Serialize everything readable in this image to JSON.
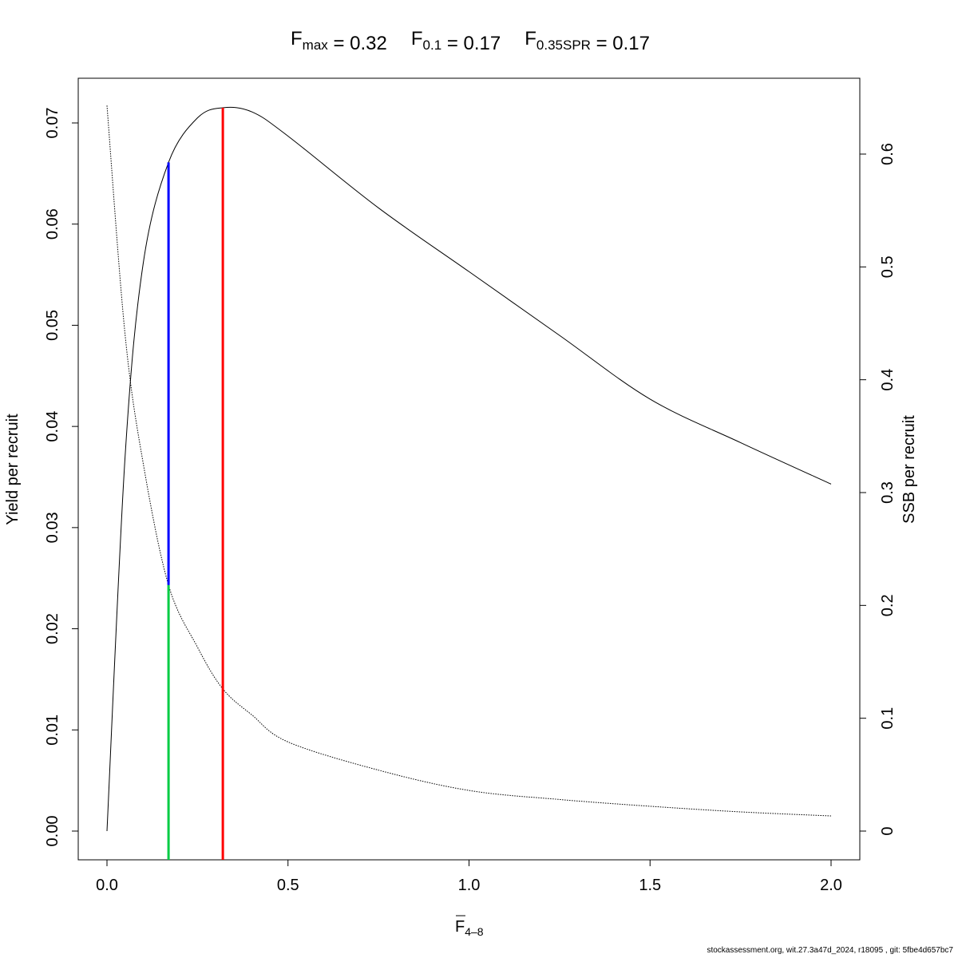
{
  "chart_data": {
    "type": "line",
    "title": {
      "parts": [
        {
          "main": "F",
          "sub": "max",
          "value": "= 0.32"
        },
        {
          "main": "F",
          "sub": "0.1",
          "value": "= 0.17"
        },
        {
          "main": "F",
          "sub": "0.35SPR",
          "value": "= 0.17"
        }
      ]
    },
    "xlabel": {
      "main": "F",
      "sub": "4–8",
      "overline": true
    },
    "ylabel": "Yield per recruit",
    "y2label": "SSB per recruit",
    "xlim": [
      0,
      2.0
    ],
    "ylim": [
      0,
      0.07
    ],
    "y2lim": [
      0,
      0.6
    ],
    "xticks": [
      "0.0",
      "0.5",
      "1.0",
      "1.5",
      "2.0"
    ],
    "yticks": [
      "0.00",
      "0.01",
      "0.02",
      "0.03",
      "0.04",
      "0.05",
      "0.06",
      "0.07"
    ],
    "y2ticks": [
      "0",
      "0.1",
      "0.2",
      "0.3",
      "0.4",
      "0.5",
      "0.6"
    ],
    "grid": false,
    "series": [
      {
        "axis": "left",
        "style": "solid",
        "color": "#000000",
        "x": [
          0,
          0.05,
          0.1,
          0.17,
          0.25,
          0.32,
          0.4,
          0.5,
          0.75,
          1.0,
          1.25,
          1.5,
          1.75,
          2.0
        ],
        "y": [
          0,
          0.037,
          0.0561,
          0.0661,
          0.0705,
          0.0715,
          0.0711,
          0.0687,
          0.0616,
          0.0553,
          0.049,
          0.0427,
          0.0384,
          0.0343
        ]
      },
      {
        "axis": "right",
        "style": "dotted",
        "color": "#000000",
        "x": [
          0,
          0.05,
          0.1,
          0.17,
          0.25,
          0.32,
          0.4,
          0.5,
          0.75,
          1.0,
          1.25,
          1.5,
          1.75,
          2.0
        ],
        "y": [
          0.643,
          0.44,
          0.326,
          0.218,
          0.163,
          0.126,
          0.103,
          0.079,
          0.054,
          0.036,
          0.028,
          0.022,
          0.017,
          0.0134
        ]
      }
    ],
    "reference_lines": [
      {
        "label": "Fmax",
        "x": 0.32,
        "color": "#ff0000",
        "from": "bottom",
        "to": "ypr"
      },
      {
        "label": "F0.1",
        "x": 0.17,
        "color": "#0000ff",
        "from": "ssb",
        "to": "ypr"
      },
      {
        "label": "F0.35SPR",
        "x": 0.17,
        "color": "#00cc44",
        "from": "bottom",
        "to": "ssb"
      }
    ]
  },
  "footer": "stockassessment.org, wit.27.3a47d_2024, r18095 , git: 5fbe4d657bc7"
}
